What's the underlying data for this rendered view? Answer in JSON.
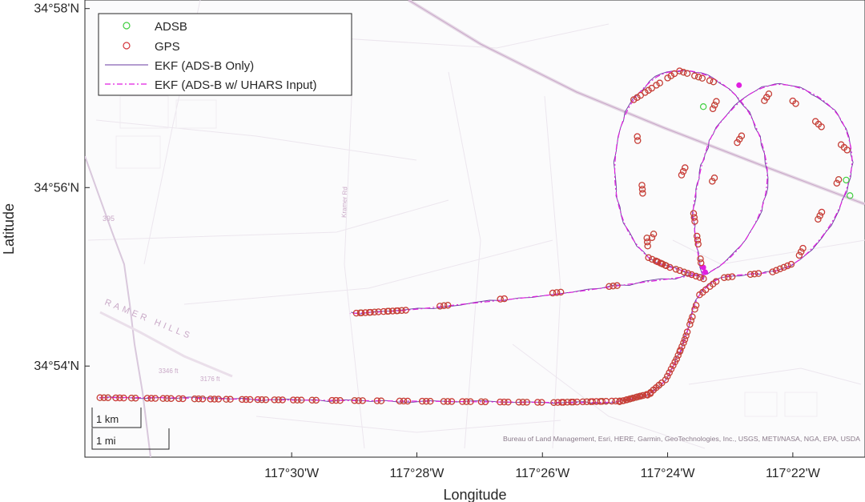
{
  "chart_data": {
    "type": "scatter",
    "xlabel": "Longitude",
    "ylabel": "Latitude",
    "x_unit": "degrees west (decimal)",
    "y_unit": "degrees north (decimal)",
    "xlim": [
      117.555,
      117.3475
    ],
    "ylim": [
      34.883,
      34.9683
    ],
    "x_ticks": [
      {
        "value": 117.5,
        "label": "117°30'W"
      },
      {
        "value": 117.4667,
        "label": "117°28'W"
      },
      {
        "value": 117.4333,
        "label": "117°26'W"
      },
      {
        "value": 117.4,
        "label": "117°24'W"
      },
      {
        "value": 117.3667,
        "label": "117°22'W"
      }
    ],
    "y_ticks": [
      {
        "value": 34.9,
        "label": "34°54'N"
      },
      {
        "value": 34.9333,
        "label": "34°56'N"
      },
      {
        "value": 34.9667,
        "label": "34°58'N"
      }
    ],
    "grid": false,
    "legend_position": "top-left",
    "legend": [
      {
        "name": "ADSB",
        "marker": "circle",
        "color": "#3fcf3f"
      },
      {
        "name": "GPS",
        "marker": "circle",
        "color": "#d4343a"
      },
      {
        "name": "EKF (ADS-B Only)",
        "line": "solid",
        "color": "#6a3aa0"
      },
      {
        "name": "EKF (ADS-B w/ UHARS Input)",
        "line": "dash-dot",
        "color": "#e01fe0"
      }
    ],
    "flight_path": [
      [
        117.5512,
        34.8941
      ],
      [
        117.535,
        34.8941
      ],
      [
        117.52,
        34.8939
      ],
      [
        117.505,
        34.8937
      ],
      [
        117.49,
        34.8936
      ],
      [
        117.475,
        34.8935
      ],
      [
        117.46,
        34.8934
      ],
      [
        117.445,
        34.8933
      ],
      [
        117.43,
        34.8932
      ],
      [
        117.42,
        34.8932
      ],
      [
        117.412,
        34.8935
      ],
      [
        117.405,
        34.8948
      ],
      [
        117.4005,
        34.8975
      ],
      [
        117.3975,
        34.9015
      ],
      [
        117.3955,
        34.9048
      ],
      [
        117.394,
        34.9085
      ],
      [
        117.3915,
        34.9133
      ],
      [
        117.386,
        34.9164
      ],
      [
        117.379,
        34.9171
      ],
      [
        117.372,
        34.9176
      ],
      [
        117.366,
        34.9193
      ],
      [
        117.3605,
        34.9228
      ],
      [
        117.3555,
        34.9278
      ],
      [
        117.352,
        34.934
      ],
      [
        117.351,
        34.9395
      ],
      [
        117.3535,
        34.9455
      ],
      [
        117.3585,
        34.9495
      ],
      [
        117.365,
        34.9519
      ],
      [
        117.3715,
        34.9525
      ],
      [
        117.378,
        34.9508
      ],
      [
        117.3835,
        34.9474
      ],
      [
        117.388,
        34.9433
      ],
      [
        117.3905,
        34.9385
      ],
      [
        117.392,
        34.934
      ],
      [
        117.3932,
        34.929
      ],
      [
        117.3925,
        34.9238
      ],
      [
        117.3915,
        34.9192
      ],
      [
        117.3905,
        34.9163
      ],
      [
        117.3935,
        34.9173
      ],
      [
        117.4,
        34.9186
      ],
      [
        117.405,
        34.9202
      ],
      [
        117.4105,
        34.9251
      ],
      [
        117.4135,
        34.9315
      ],
      [
        117.414,
        34.938
      ],
      [
        117.4125,
        34.9445
      ],
      [
        117.409,
        34.9497
      ],
      [
        117.403,
        34.9539
      ],
      [
        117.397,
        34.9551
      ],
      [
        117.391,
        34.9546
      ],
      [
        117.385,
        34.9524
      ],
      [
        117.3795,
        34.9485
      ],
      [
        117.3755,
        34.9428
      ],
      [
        117.3735,
        34.9365
      ],
      [
        117.3745,
        34.9305
      ],
      [
        117.378,
        34.925
      ],
      [
        117.383,
        34.9205
      ],
      [
        117.3892,
        34.9174
      ],
      [
        117.395,
        34.9167
      ],
      [
        117.41,
        34.9153
      ],
      [
        117.425,
        34.9138
      ],
      [
        117.44,
        34.9126
      ],
      [
        117.455,
        34.9115
      ],
      [
        117.47,
        34.9104
      ],
      [
        117.4845,
        34.9098
      ]
    ],
    "uhars_anomaly": {
      "x": [
        117.381,
        117.39,
        117.3905
      ],
      "y": [
        34.9524,
        34.9175,
        34.9184
      ]
    },
    "gps_points": {
      "segments": [
        [
          0,
          3,
          11
        ],
        [
          3,
          4,
          3
        ],
        [
          4,
          6,
          5
        ],
        [
          6,
          8,
          6
        ],
        [
          8,
          10,
          7
        ],
        [
          10,
          11,
          8
        ],
        [
          11,
          12,
          3
        ],
        [
          12,
          13,
          2
        ],
        [
          13,
          14,
          2
        ],
        [
          14,
          16,
          3
        ],
        [
          16,
          17,
          2
        ],
        [
          17,
          19,
          2
        ],
        [
          19,
          20,
          2
        ],
        [
          20,
          24,
          3
        ],
        [
          24,
          28,
          3
        ],
        [
          28,
          34,
          3
        ],
        [
          34,
          37,
          3
        ],
        [
          37,
          39,
          3
        ],
        [
          39,
          40,
          4
        ],
        [
          40,
          45,
          3
        ],
        [
          45,
          47,
          4
        ],
        [
          47,
          49,
          3
        ],
        [
          49,
          58,
          3
        ],
        [
          58,
          62,
          4
        ],
        [
          62,
          63,
          6
        ]
      ]
    },
    "adsb_outliers": {
      "x": [
        117.3905,
        117.3525,
        117.3515
      ],
      "y": [
        34.9484,
        34.9347,
        34.9318
      ]
    }
  },
  "map": {
    "labels": [
      {
        "text": "RAMER HILLS"
      },
      {
        "text": "3346 ft"
      },
      {
        "text": "3176 ft"
      },
      {
        "text": "Kramer Rd"
      },
      {
        "text": "395"
      }
    ],
    "scale_bar": {
      "km_label": "1 km",
      "mi_label": "1 mi"
    },
    "attribution": "Bureau of Land Management, Esri, HERE, Garmin, GeoTechnologies, Inc., USGS, METI/NASA, NGA, EPA, USDA"
  },
  "colors": {
    "ekf_adsb": "#6a3aa0",
    "ekf_uhars": "#e01fe0",
    "gps": "#d4343a",
    "adsb": "#3fcf3f",
    "map_road": "#e3dde6",
    "map_highway": "#b99ab9"
  }
}
